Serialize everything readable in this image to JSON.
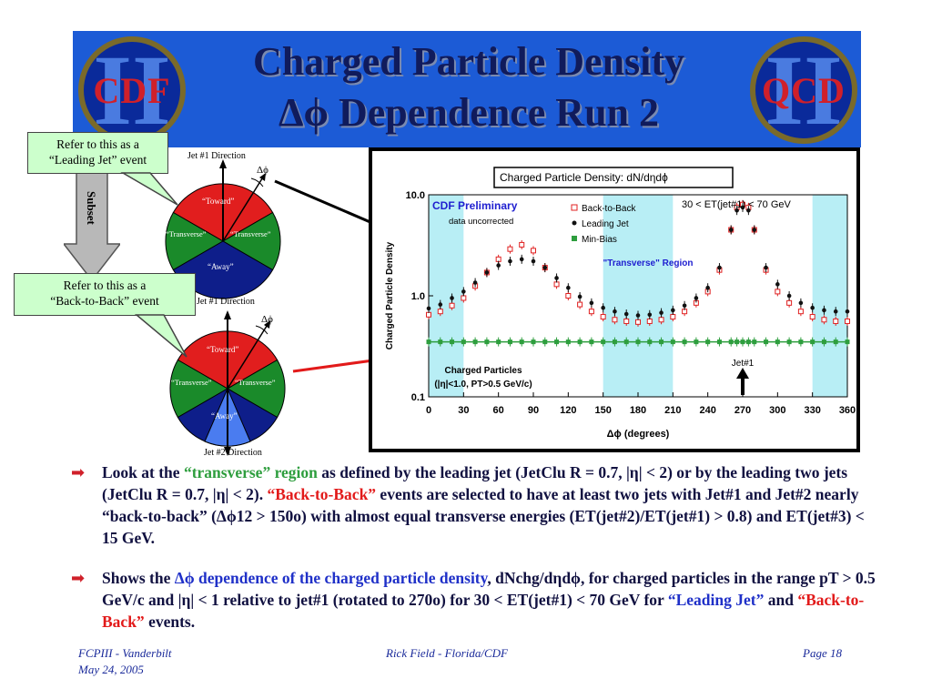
{
  "title": {
    "line1": "Charged Particle Density",
    "line2": "Δϕ Dependence Run 2"
  },
  "logos": {
    "left_text": "CDF",
    "right_text": "QCD",
    "roman": "II"
  },
  "callouts": {
    "leading_jet": {
      "line1": "Refer to this as a",
      "line2": "“Leading Jet” event"
    },
    "back_to_back": {
      "line1": "Refer to this as a",
      "line2": "“Back-to-Back” event"
    }
  },
  "subset_label": "Subset",
  "diagram_top": {
    "jet1_label": "Jet #1 Direction",
    "dphi": "Δϕ",
    "toward": "“Toward”",
    "transverse_left": "“Transverse”",
    "transverse_right": "“Transverse”",
    "away": "“Away”"
  },
  "diagram_bottom": {
    "jet1_label": "Jet #1 Direction",
    "dphi": "Δϕ",
    "toward": "“Toward”",
    "transverse_left": "“Transverse”",
    "transverse_right": "“Transverse”",
    "away": "“Away”",
    "jet2_label": "Jet #2 Direction"
  },
  "chart_data": {
    "type": "scatter",
    "title": "Charged Particle Density: dN/dηdϕ",
    "xlabel": "Δϕ  (degrees)",
    "ylabel": "Charged Particle Density",
    "xlim": [
      0,
      360
    ],
    "ylim": [
      0.1,
      10.0
    ],
    "yscale": "log",
    "xticks": [
      "0",
      "30",
      "60",
      "90",
      "120",
      "150",
      "180",
      "210",
      "240",
      "270",
      "300",
      "330",
      "360"
    ],
    "yticks": [
      "10.0",
      "1.0",
      "0.1"
    ],
    "annotations": {
      "preliminary": "CDF Preliminary",
      "uncorrected": "data uncorrected",
      "et_range": "30 < ET(jet#1) < 70 GeV",
      "transverse_region": "\"Transverse\" Region",
      "charged_particles": "Charged Particles",
      "cuts": "(|η|<1.0, PT>0.5 GeV/c)",
      "jet1": "Jet#1"
    },
    "shaded_regions": [
      [
        0,
        30
      ],
      [
        150,
        210
      ],
      [
        330,
        360
      ]
    ],
    "legend_position": "top-left",
    "x": [
      0,
      10,
      20,
      30,
      40,
      50,
      60,
      70,
      80,
      90,
      100,
      110,
      120,
      130,
      140,
      150,
      160,
      170,
      180,
      190,
      200,
      210,
      220,
      230,
      240,
      250,
      260,
      265,
      270,
      275,
      280,
      290,
      300,
      310,
      320,
      330,
      340,
      350,
      360
    ],
    "series": [
      {
        "name": "Back-to-Back",
        "color": "#e02020",
        "marker": "open-square",
        "values": [
          0.65,
          0.7,
          0.8,
          0.95,
          1.25,
          1.7,
          2.3,
          2.9,
          3.2,
          2.8,
          1.9,
          1.3,
          1.0,
          0.82,
          0.7,
          0.62,
          0.58,
          0.56,
          0.55,
          0.56,
          0.58,
          0.62,
          0.7,
          0.85,
          1.1,
          1.8,
          4.5,
          7.5,
          8.0,
          7.5,
          4.5,
          1.8,
          1.1,
          0.85,
          0.7,
          0.62,
          0.58,
          0.56,
          0.56
        ]
      },
      {
        "name": "Leading Jet",
        "color": "#111111",
        "marker": "filled-circle",
        "values": [
          0.75,
          0.82,
          0.95,
          1.1,
          1.35,
          1.7,
          2.0,
          2.2,
          2.3,
          2.2,
          1.9,
          1.5,
          1.2,
          0.98,
          0.85,
          0.76,
          0.7,
          0.66,
          0.64,
          0.65,
          0.68,
          0.72,
          0.8,
          0.95,
          1.2,
          1.9,
          4.5,
          7.0,
          7.5,
          7.0,
          4.5,
          1.9,
          1.3,
          1.0,
          0.85,
          0.76,
          0.72,
          0.7,
          0.7
        ]
      },
      {
        "name": "Min-Bias",
        "color": "#2e9e3e",
        "marker": "filled-square",
        "values": [
          0.35,
          0.35,
          0.35,
          0.35,
          0.35,
          0.35,
          0.35,
          0.35,
          0.35,
          0.35,
          0.35,
          0.35,
          0.35,
          0.35,
          0.35,
          0.35,
          0.35,
          0.35,
          0.35,
          0.35,
          0.35,
          0.35,
          0.35,
          0.35,
          0.35,
          0.35,
          0.35,
          0.35,
          0.35,
          0.35,
          0.35,
          0.35,
          0.35,
          0.35,
          0.35,
          0.35,
          0.35,
          0.35,
          0.35
        ]
      }
    ]
  },
  "bullets": {
    "b1_a": "Look at the ",
    "b1_b": "“transverse” region",
    "b1_c": " as defined by the leading jet (JetClu R = 0.7, |η| < 2) or by the leading two jets (JetClu R = 0.7, |η| < 2). ",
    "b1_d": "“Back-to-Back”",
    "b1_e": " events are selected to have at least two jets with Jet#1 and Jet#2 nearly “back-to-back” (Δϕ12 > 150o) with almost equal transverse energies (ET(jet#2)/ET(jet#1) > 0.8) and ET(jet#3) < 15 GeV.",
    "b2_a": "Shows the ",
    "b2_b": "Δϕ dependence of the charged particle density",
    "b2_c": ", dNchg/dηdϕ, for charged particles in the range pT > 0.5 GeV/c and |η| < 1 relative to jet#1 (rotated to 270o)  for 30 < ET(jet#1) < 70 GeV for ",
    "b2_d": "“Leading Jet”",
    "b2_e": " and ",
    "b2_f": "“Back-to-Back”",
    "b2_g": " events."
  },
  "footer": {
    "left": "FCPIII - Vanderbilt",
    "date": "May 24, 2005",
    "center": "Rick Field - Florida/CDF",
    "right": "Page 18"
  }
}
